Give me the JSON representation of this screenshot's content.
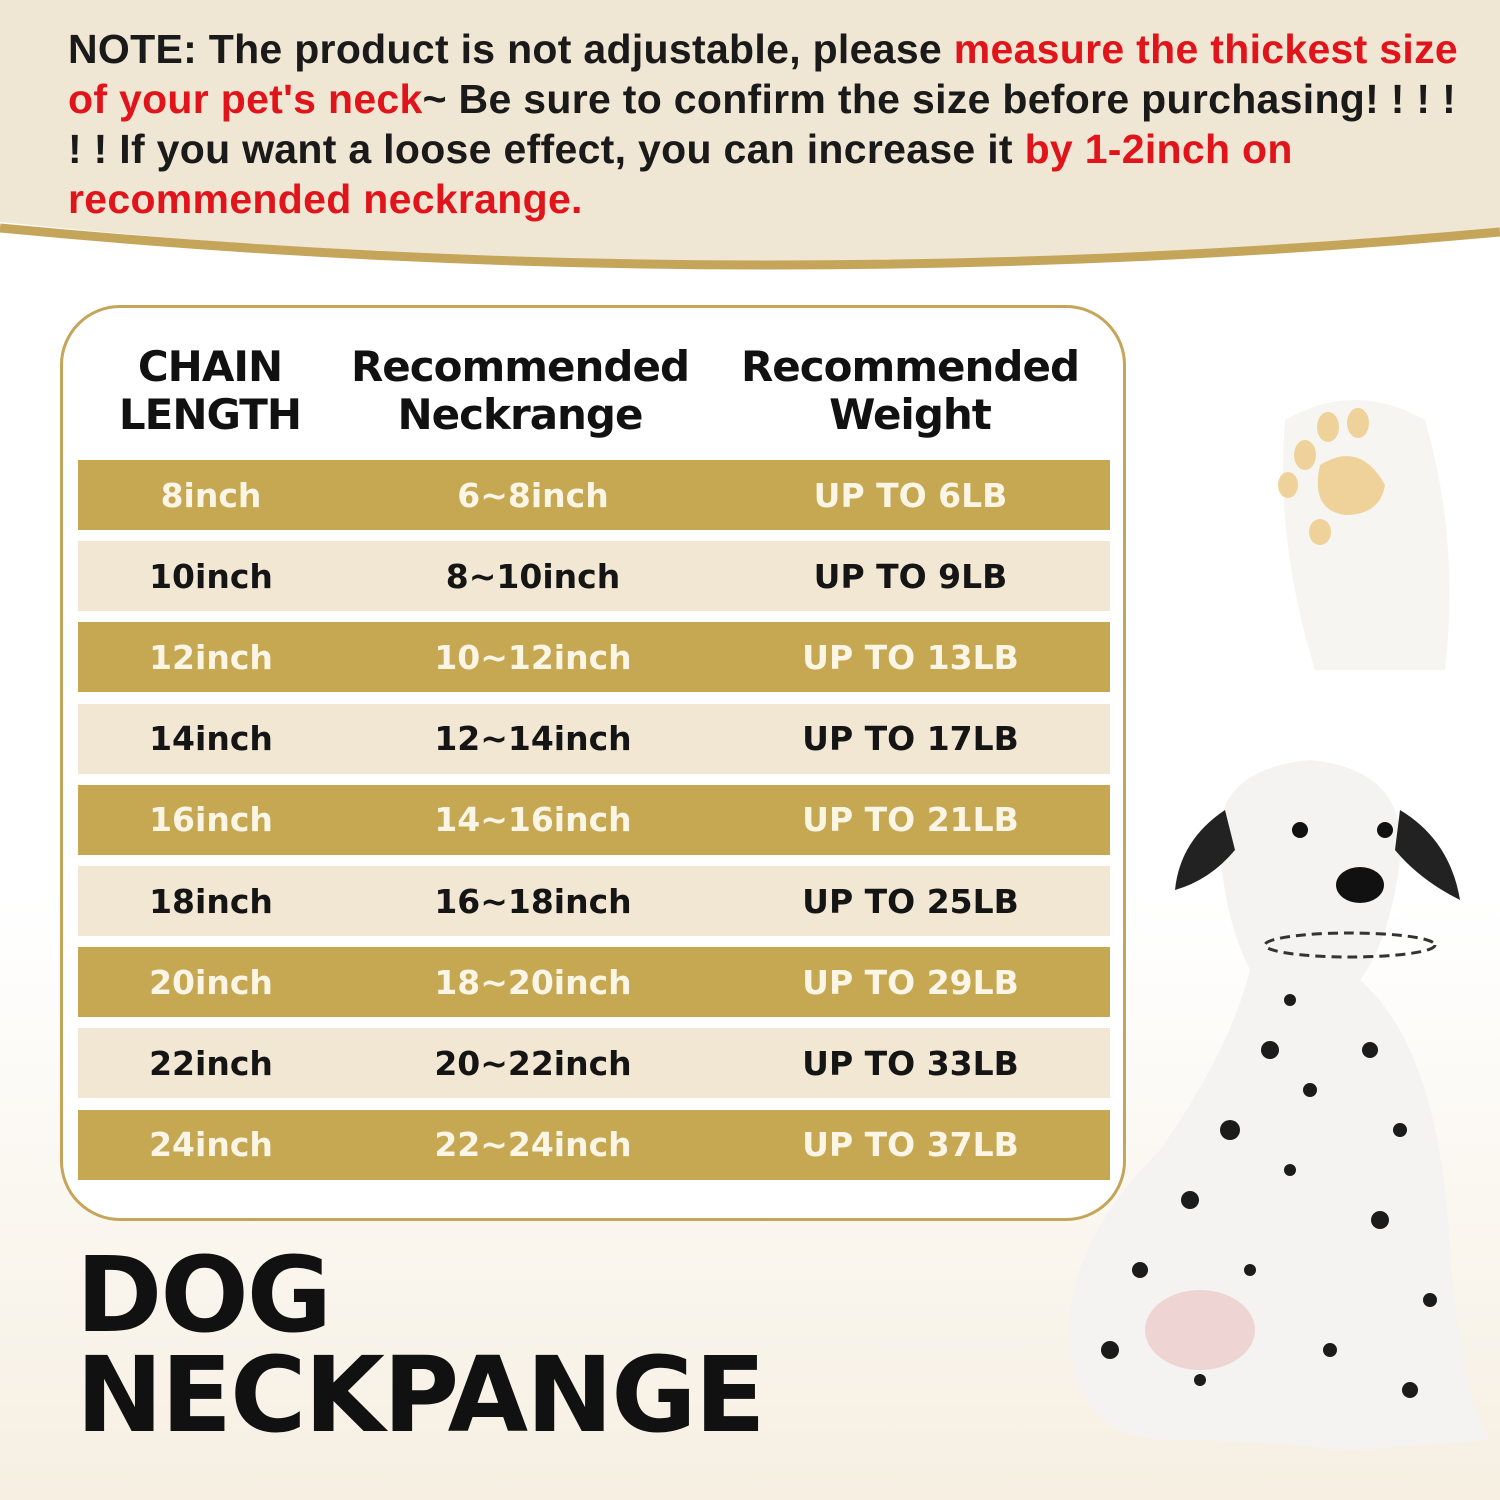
{
  "note": {
    "segments": [
      {
        "text": "NOTE: The product is not adjustable, please ",
        "color": "#1a1a1a"
      },
      {
        "text": "measure the thickest size of your pet's neck",
        "color": "#e0141a"
      },
      {
        "text": "~ Be sure to confirm the size before purchasing! ! ! ! ! ! If you want a loose effect, you can increase it ",
        "color": "#1a1a1a"
      },
      {
        "text": "by 1-2inch on recommended neckrange.",
        "color": "#e0141a"
      }
    ]
  },
  "table": {
    "headers": [
      "CHAIN LENGTH",
      "Recommended Neckrange",
      "Recommended Weight"
    ],
    "rows": [
      [
        "8inch",
        "6~8inch",
        "UP TO 6LB"
      ],
      [
        "10inch",
        "8~10inch",
        "UP TO 9LB"
      ],
      [
        "12inch",
        "10~12inch",
        "UP TO 13LB"
      ],
      [
        "14inch",
        "12~14inch",
        "UP TO 17LB"
      ],
      [
        "16inch",
        "14~16inch",
        "UP TO 21LB"
      ],
      [
        "18inch",
        "16~18inch",
        "UP TO 25LB"
      ],
      [
        "20inch",
        "18~20inch",
        "UP TO 29LB"
      ],
      [
        "22inch",
        "20~22inch",
        "UP TO 33LB"
      ],
      [
        "24inch",
        "22~24inch",
        "UP TO 37LB"
      ]
    ]
  },
  "title": {
    "line1": "DOG",
    "line2": "NECKPANGE"
  },
  "colors": {
    "gold": "#c6a752",
    "light_row": "#f1e7d3",
    "accent_red": "#e0141a",
    "band": "#efe6d4"
  },
  "icons": {
    "paw": "paw-print-icon",
    "dog": "dalmatian-puppy-image"
  }
}
